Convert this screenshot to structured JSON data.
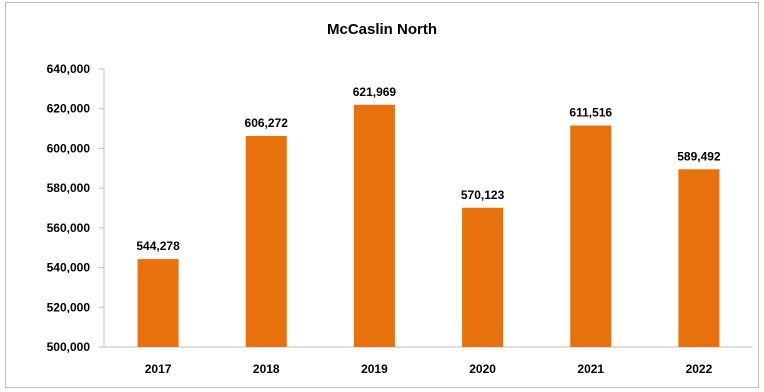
{
  "chart_data": {
    "type": "bar",
    "title": "McCaslin North",
    "categories": [
      "2017",
      "2018",
      "2019",
      "2020",
      "2021",
      "2022"
    ],
    "values": [
      544278,
      606272,
      621969,
      570123,
      611516,
      589492
    ],
    "value_labels": [
      "544,278",
      "606,272",
      "621,969",
      "570,123",
      "611,516",
      "589,492"
    ],
    "ylim": [
      500000,
      640000
    ],
    "yticks": [
      500000,
      520000,
      540000,
      560000,
      580000,
      600000,
      620000,
      640000
    ],
    "ytick_labels": [
      "500,000",
      "520,000",
      "540,000",
      "560,000",
      "580,000",
      "600,000",
      "620,000",
      "640,000"
    ],
    "xlabel": "",
    "ylabel": "",
    "grid": false,
    "legend": "none",
    "bar_color": "#E8700D"
  }
}
